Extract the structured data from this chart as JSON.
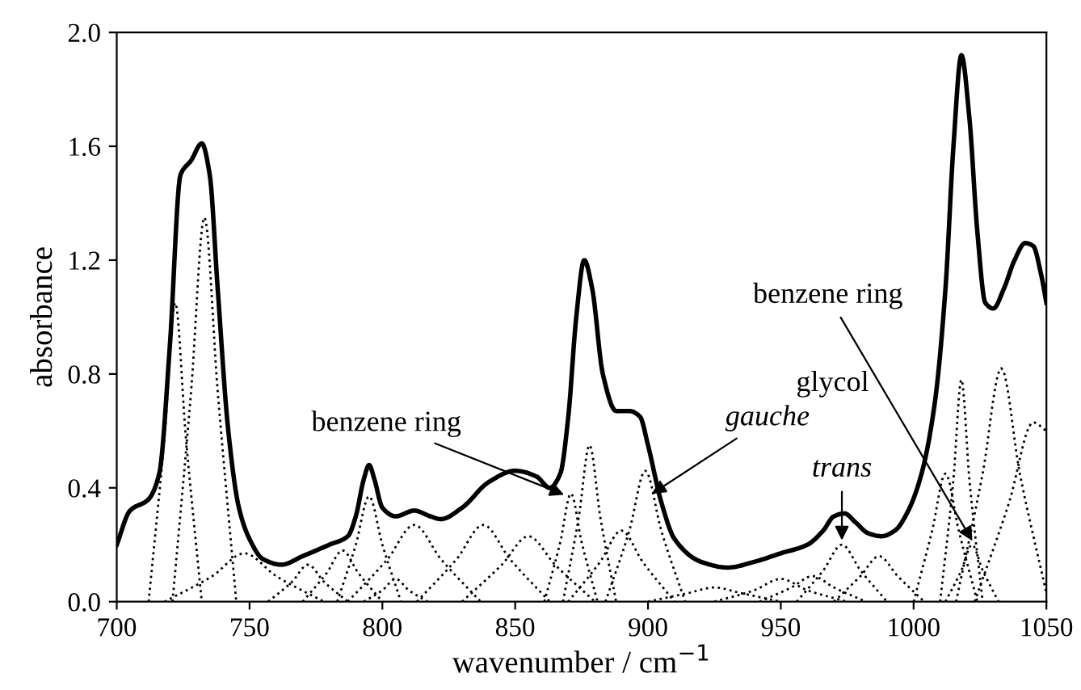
{
  "chart_data": {
    "type": "line",
    "xlabel": "wavenumber / cm$^{−1}$",
    "ylabel": "absorbance",
    "xlim": [
      700,
      1050
    ],
    "ylim": [
      0,
      2.0
    ],
    "xticks": [
      700,
      750,
      800,
      850,
      900,
      950,
      1000,
      1050
    ],
    "yticks": [
      {
        "value": 0,
        "label": "0.0"
      },
      {
        "value": 0.4,
        "label": "0.4"
      },
      {
        "value": 0.8,
        "label": "0.8"
      },
      {
        "value": 1.2,
        "label": "1.2"
      },
      {
        "value": 1.6,
        "label": "1.6"
      },
      {
        "value": 2.0,
        "label": "2.0"
      }
    ],
    "grid": false,
    "legend": false,
    "series": [
      {
        "color": "#000000",
        "line_style": "solid",
        "x": [
          700,
          705,
          712,
          716,
          720,
          724,
          728,
          732,
          735,
          738,
          742,
          746,
          750,
          755,
          762,
          770,
          780,
          787,
          790,
          793,
          795,
          797,
          800,
          805,
          812,
          818,
          822,
          830,
          840,
          850,
          858,
          863,
          867,
          870,
          873,
          876,
          879,
          883,
          888,
          893,
          897,
          900,
          905,
          910,
          920,
          930,
          940,
          950,
          960,
          966,
          970,
          974,
          978,
          983,
          988,
          993,
          998,
          1003,
          1008,
          1012,
          1015,
          1018,
          1021,
          1024,
          1027,
          1030,
          1034,
          1038,
          1042,
          1045,
          1048,
          1050
        ],
        "values": [
          0.2,
          0.32,
          0.36,
          0.45,
          0.9,
          1.5,
          1.55,
          1.61,
          1.5,
          1.1,
          0.6,
          0.33,
          0.22,
          0.15,
          0.13,
          0.16,
          0.2,
          0.23,
          0.3,
          0.43,
          0.48,
          0.43,
          0.33,
          0.3,
          0.32,
          0.3,
          0.29,
          0.33,
          0.42,
          0.46,
          0.44,
          0.4,
          0.45,
          0.65,
          1.0,
          1.2,
          1.1,
          0.8,
          0.67,
          0.67,
          0.65,
          0.55,
          0.35,
          0.22,
          0.14,
          0.12,
          0.14,
          0.17,
          0.2,
          0.25,
          0.3,
          0.31,
          0.28,
          0.24,
          0.23,
          0.25,
          0.32,
          0.45,
          0.7,
          1.1,
          1.6,
          1.92,
          1.7,
          1.3,
          1.05,
          1.03,
          1.1,
          1.2,
          1.26,
          1.25,
          1.15,
          1.05
        ]
      },
      {
        "color": "#000000",
        "line_style": "dotted",
        "x": [
          712,
          718,
          722,
          726,
          732
        ],
        "values": [
          0,
          0.58,
          1.05,
          0.58,
          0
        ]
      },
      {
        "color": "#000000",
        "line_style": "dotted",
        "x": [
          721,
          728,
          733,
          738,
          745
        ],
        "values": [
          0,
          0.74,
          1.35,
          0.74,
          0
        ]
      },
      {
        "color": "#000000",
        "line_style": "dotted",
        "x": [
          718,
          736,
          748,
          760,
          778
        ],
        "values": [
          0,
          0.09,
          0.17,
          0.09,
          0
        ]
      },
      {
        "color": "#000000",
        "line_style": "dotted",
        "x": [
          757,
          766,
          772,
          778,
          787
        ],
        "values": [
          0,
          0.07,
          0.13,
          0.07,
          0
        ]
      },
      {
        "color": "#000000",
        "line_style": "dotted",
        "x": [
          770,
          779,
          785,
          791,
          800
        ],
        "values": [
          0,
          0.1,
          0.18,
          0.1,
          0
        ]
      },
      {
        "color": "#000000",
        "line_style": "dotted",
        "x": [
          783,
          790,
          795,
          800,
          807
        ],
        "values": [
          0,
          0.2,
          0.37,
          0.2,
          0
        ]
      },
      {
        "color": "#000000",
        "line_style": "dotted",
        "x": [
          793,
          800,
          805,
          810,
          817
        ],
        "values": [
          0,
          0.04,
          0.08,
          0.04,
          0
        ]
      },
      {
        "color": "#000000",
        "line_style": "dotted",
        "x": [
          787,
          802,
          812,
          822,
          837
        ],
        "values": [
          0,
          0.15,
          0.27,
          0.15,
          0
        ]
      },
      {
        "color": "#000000",
        "line_style": "dotted",
        "x": [
          813,
          828,
          838,
          848,
          863
        ],
        "values": [
          0,
          0.15,
          0.27,
          0.15,
          0
        ]
      },
      {
        "color": "#000000",
        "line_style": "dotted",
        "x": [
          830,
          845,
          855,
          865,
          880
        ],
        "values": [
          0,
          0.13,
          0.23,
          0.13,
          0
        ]
      },
      {
        "color": "#000000",
        "line_style": "dotted",
        "x": [
          861,
          867,
          871,
          875,
          881
        ],
        "values": [
          0,
          0.21,
          0.38,
          0.21,
          0
        ]
      },
      {
        "color": "#000000",
        "line_style": "dotted",
        "x": [
          868,
          874,
          878,
          882,
          888
        ],
        "values": [
          0,
          0.3,
          0.55,
          0.3,
          0
        ]
      },
      {
        "color": "#000000",
        "line_style": "dotted",
        "x": [
          870,
          882,
          890,
          898,
          910
        ],
        "values": [
          0,
          0.14,
          0.25,
          0.14,
          0
        ]
      },
      {
        "color": "#000000",
        "line_style": "dotted",
        "x": [
          884,
          893,
          899,
          905,
          914
        ],
        "values": [
          0,
          0.25,
          0.46,
          0.25,
          0
        ]
      },
      {
        "color": "#000000",
        "line_style": "dotted",
        "x": [
          900,
          915,
          925,
          935,
          950
        ],
        "values": [
          0,
          0.03,
          0.05,
          0.03,
          0
        ]
      },
      {
        "color": "#000000",
        "line_style": "dotted",
        "x": [
          925,
          940,
          950,
          960,
          975
        ],
        "values": [
          0,
          0.04,
          0.08,
          0.04,
          0
        ]
      },
      {
        "color": "#000000",
        "line_style": "dotted",
        "x": [
          942,
          954,
          962,
          970,
          982
        ],
        "values": [
          0,
          0.05,
          0.09,
          0.05,
          0
        ]
      },
      {
        "color": "#000000",
        "line_style": "dotted",
        "x": [
          956,
          966,
          973,
          980,
          990
        ],
        "values": [
          0,
          0.11,
          0.2,
          0.11,
          0
        ]
      },
      {
        "color": "#000000",
        "line_style": "dotted",
        "x": [
          970,
          980,
          987,
          994,
          1004
        ],
        "values": [
          0,
          0.09,
          0.16,
          0.09,
          0
        ]
      },
      {
        "color": "#000000",
        "line_style": "dotted",
        "x": [
          1000,
          1007,
          1012,
          1017,
          1024
        ],
        "values": [
          0,
          0.25,
          0.45,
          0.25,
          0
        ]
      },
      {
        "color": "#000000",
        "line_style": "dotted",
        "x": [
          1010,
          1015,
          1018,
          1021,
          1026
        ],
        "values": [
          0,
          0.43,
          0.78,
          0.43,
          0
        ]
      },
      {
        "color": "#000000",
        "line_style": "dotted",
        "x": [
          1012,
          1018,
          1022,
          1026,
          1032
        ],
        "values": [
          0,
          0.11,
          0.2,
          0.11,
          0
        ]
      },
      {
        "color": "#000000",
        "line_style": "dotted",
        "x": [
          1016,
          1026,
          1033,
          1040,
          1050
        ],
        "values": [
          0,
          0.45,
          0.82,
          0.45,
          0.03
        ]
      },
      {
        "color": "#000000",
        "line_style": "dotted",
        "x": [
          1023,
          1036,
          1045,
          1050
        ],
        "values": [
          0,
          0.35,
          0.63,
          0.6
        ]
      }
    ],
    "annotations": [
      {
        "text": "benzene ring",
        "x": 870,
        "y": 0.37
      },
      {
        "text": "benzene ring",
        "x": 1023,
        "y": 0.2
      },
      "glycol",
      {
        "text": "gauche",
        "x": 900,
        "y": 0.37
      },
      {
        "text": "trans",
        "x": 973,
        "y": 0.2
      }
    ]
  }
}
